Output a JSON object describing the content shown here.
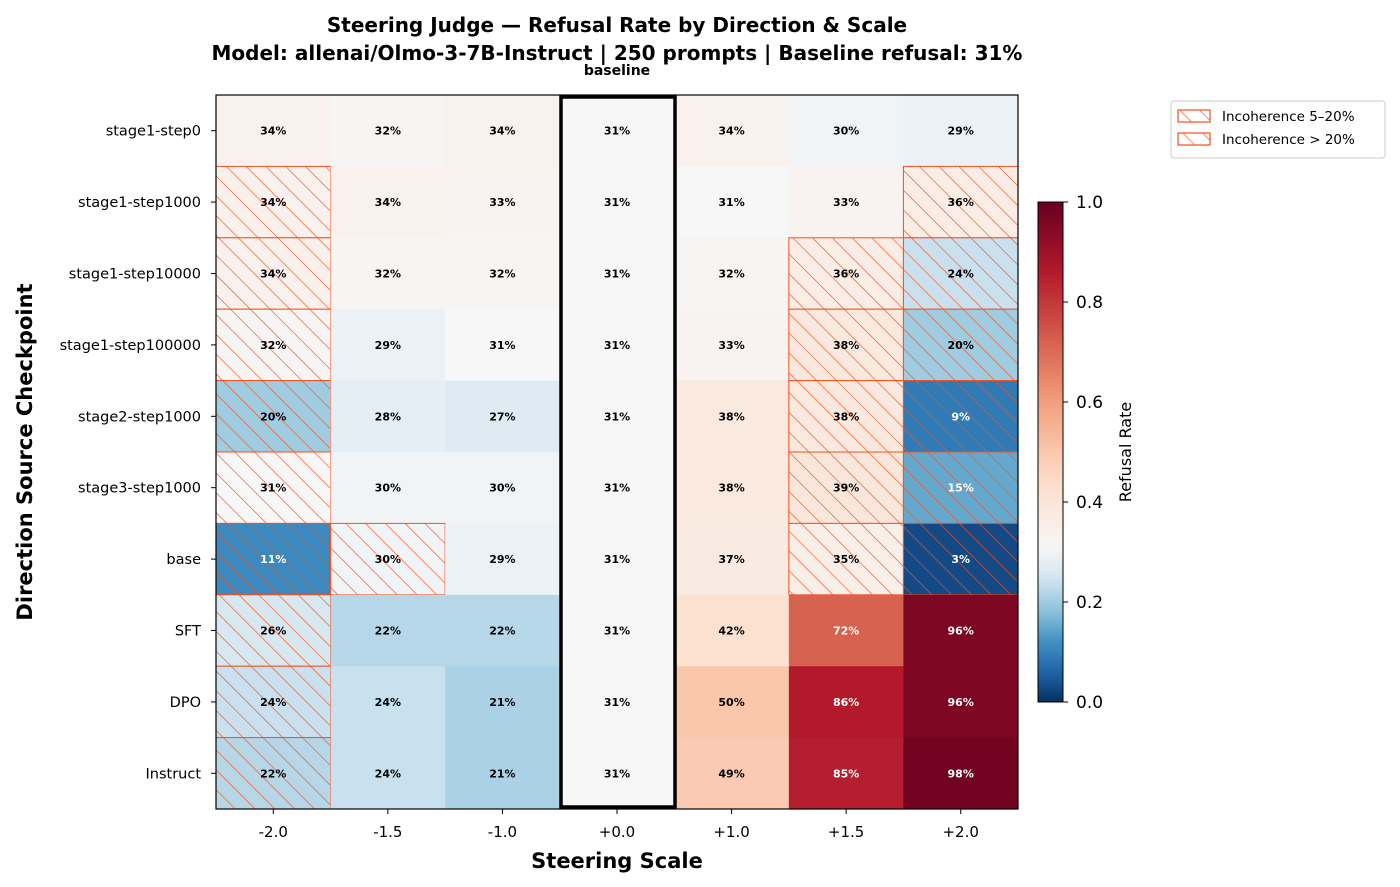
{
  "chart_data": {
    "type": "heatmap",
    "title_line1": "Steering Judge — Refusal Rate by Direction & Scale",
    "title_line2": "Model: allenai/Olmo-3-7B-Instruct  |  250 prompts  |  Baseline refusal: 31%",
    "xlabel": "Steering Scale",
    "ylabel": "Direction Source Checkpoint",
    "baseline_label": "baseline",
    "x_categories": [
      "-2.0",
      "-1.5",
      "-1.0",
      "+0.0",
      "+1.0",
      "+1.5",
      "+2.0"
    ],
    "baseline_column": "+0.0",
    "y_categories": [
      "stage1-step0",
      "stage1-step1000",
      "stage1-step10000",
      "stage1-step100000",
      "stage2-step1000",
      "stage3-step1000",
      "base",
      "SFT",
      "DPO",
      "Instruct"
    ],
    "values": [
      [
        34,
        32,
        34,
        31,
        34,
        30,
        29
      ],
      [
        34,
        34,
        33,
        31,
        31,
        33,
        36
      ],
      [
        34,
        32,
        32,
        31,
        32,
        36,
        24
      ],
      [
        32,
        29,
        31,
        31,
        33,
        38,
        20
      ],
      [
        20,
        28,
        27,
        31,
        38,
        38,
        9
      ],
      [
        31,
        30,
        30,
        31,
        38,
        39,
        15
      ],
      [
        11,
        30,
        29,
        31,
        37,
        35,
        3
      ],
      [
        26,
        22,
        22,
        31,
        42,
        72,
        96
      ],
      [
        24,
        24,
        21,
        31,
        50,
        86,
        96
      ],
      [
        22,
        24,
        21,
        31,
        49,
        85,
        98
      ]
    ],
    "value_unit": "%",
    "incoherence": [
      [
        0,
        0,
        0,
        0,
        0,
        0,
        0
      ],
      [
        2,
        0,
        0,
        0,
        0,
        0,
        2
      ],
      [
        2,
        0,
        0,
        0,
        0,
        2,
        2
      ],
      [
        2,
        0,
        0,
        0,
        0,
        2,
        2
      ],
      [
        2,
        0,
        0,
        0,
        0,
        2,
        2
      ],
      [
        2,
        0,
        0,
        0,
        0,
        2,
        2
      ],
      [
        2,
        2,
        0,
        0,
        0,
        2,
        2
      ],
      [
        2,
        0,
        0,
        0,
        0,
        0,
        0
      ],
      [
        2,
        0,
        0,
        0,
        0,
        0,
        0
      ],
      [
        2,
        0,
        0,
        0,
        0,
        0,
        0
      ]
    ],
    "legend": [
      {
        "label": "Incoherence 5–20%",
        "level": 1
      },
      {
        "label": "Incoherence > 20%",
        "level": 2
      }
    ],
    "legend_position": "outside top-right",
    "hatch_color": "#f4511e",
    "colorbar": {
      "label": "Refusal Rate",
      "range": [
        0.0,
        1.0
      ],
      "center": 0.31,
      "ticks": [
        "0.0",
        "0.2",
        "0.4",
        "0.6",
        "0.8",
        "1.0"
      ],
      "colormap": "RdBu_r",
      "colors": [
        "#053061",
        "#2166ac",
        "#4393c3",
        "#92c5de",
        "#d1e5f0",
        "#f7f7f7",
        "#fddbc7",
        "#f4a582",
        "#d6604d",
        "#b2182b",
        "#67001f"
      ]
    }
  }
}
